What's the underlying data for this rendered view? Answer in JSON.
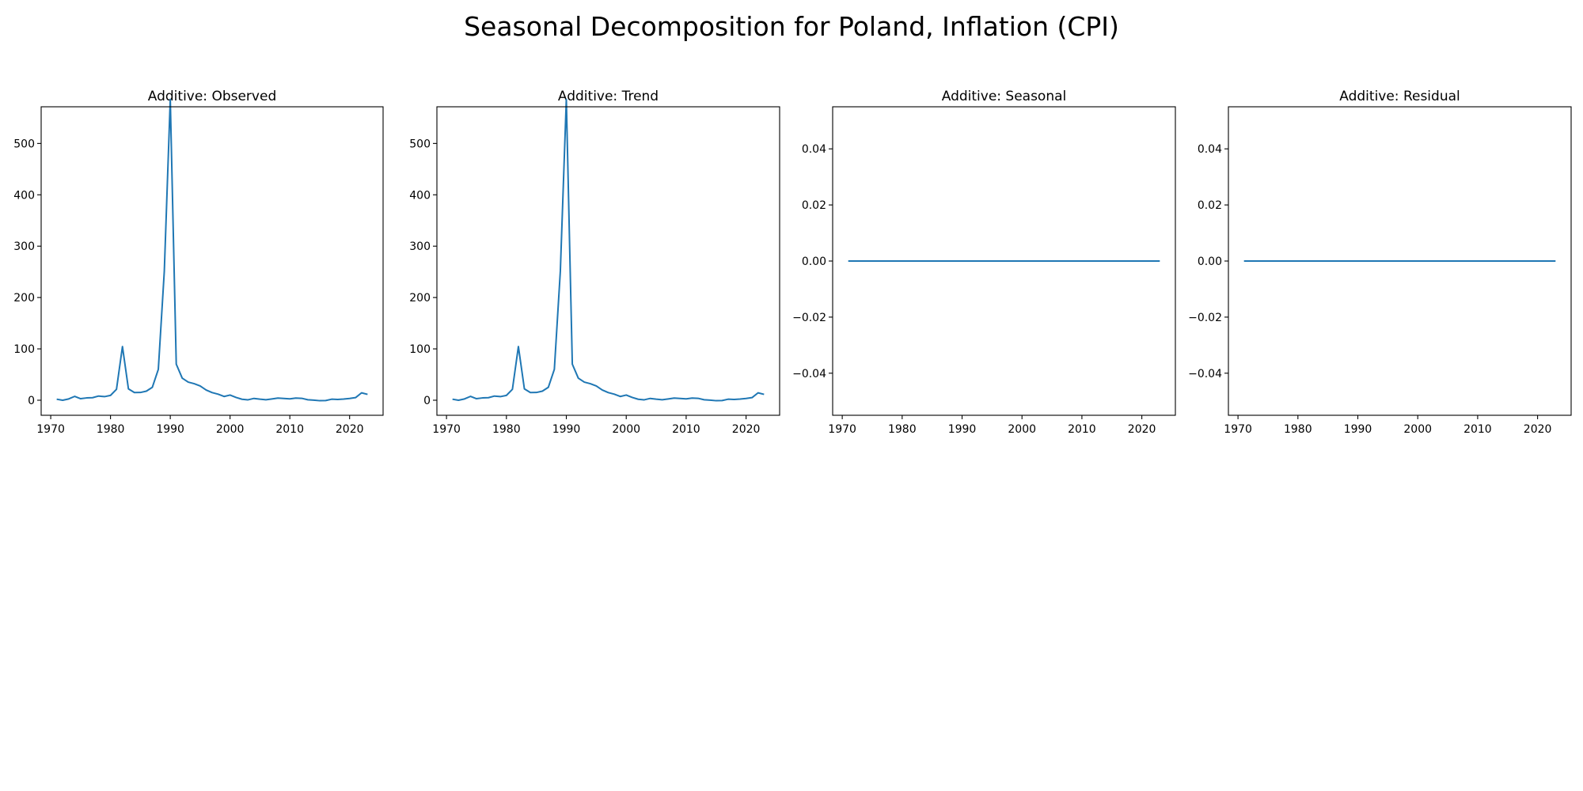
{
  "figure": {
    "title": "Seasonal Decomposition for Poland, Inflation (CPI)"
  },
  "chart_data": [
    {
      "type": "line",
      "title": "Additive: Observed",
      "xlabel": "",
      "ylabel": "",
      "x": [
        1971,
        1972,
        1973,
        1974,
        1975,
        1976,
        1977,
        1978,
        1979,
        1980,
        1981,
        1982,
        1983,
        1984,
        1985,
        1986,
        1987,
        1988,
        1989,
        1990,
        1991,
        1992,
        1993,
        1994,
        1995,
        1996,
        1997,
        1998,
        1999,
        2000,
        2001,
        2002,
        2003,
        2004,
        2005,
        2006,
        2007,
        2008,
        2009,
        2010,
        2011,
        2012,
        2013,
        2014,
        2015,
        2016,
        2017,
        2018,
        2019,
        2020,
        2021,
        2022,
        2023
      ],
      "values": [
        2.0,
        0.0,
        2.5,
        7.5,
        3.0,
        4.5,
        5.0,
        8.1,
        7.0,
        9.4,
        21.2,
        104.5,
        22.1,
        15.0,
        15.1,
        17.7,
        25.2,
        60.2,
        251.1,
        585.8,
        70.3,
        43.0,
        35.3,
        32.2,
        27.8,
        19.9,
        14.9,
        11.8,
        7.3,
        10.1,
        5.5,
        1.9,
        0.8,
        3.5,
        2.1,
        1.0,
        2.5,
        4.2,
        3.5,
        2.6,
        4.2,
        3.7,
        0.9,
        0.1,
        -0.9,
        -0.6,
        2.0,
        1.6,
        2.2,
        3.4,
        5.1,
        14.4,
        11.4
      ],
      "xticks": [
        "1970",
        "1980",
        "1990",
        "2000",
        "2010",
        "2020"
      ],
      "xtick_values": [
        1970,
        1980,
        1990,
        2000,
        2010,
        2020
      ],
      "yticks": [
        "0",
        "100",
        "200",
        "300",
        "400",
        "500"
      ],
      "ytick_values": [
        0,
        100,
        200,
        300,
        400,
        500
      ],
      "xlim": [
        1968.4,
        2025.6
      ],
      "ylim": [
        -29.3,
        571.4
      ],
      "grid": false,
      "color": "#1f77b4"
    },
    {
      "type": "line",
      "title": "Additive: Trend",
      "xlabel": "",
      "ylabel": "",
      "x": [
        1971,
        1972,
        1973,
        1974,
        1975,
        1976,
        1977,
        1978,
        1979,
        1980,
        1981,
        1982,
        1983,
        1984,
        1985,
        1986,
        1987,
        1988,
        1989,
        1990,
        1991,
        1992,
        1993,
        1994,
        1995,
        1996,
        1997,
        1998,
        1999,
        2000,
        2001,
        2002,
        2003,
        2004,
        2005,
        2006,
        2007,
        2008,
        2009,
        2010,
        2011,
        2012,
        2013,
        2014,
        2015,
        2016,
        2017,
        2018,
        2019,
        2020,
        2021,
        2022,
        2023
      ],
      "values": [
        2.0,
        0.0,
        2.5,
        7.5,
        3.0,
        4.5,
        5.0,
        8.1,
        7.0,
        9.4,
        21.2,
        104.5,
        22.1,
        15.0,
        15.1,
        17.7,
        25.2,
        60.2,
        251.1,
        585.8,
        70.3,
        43.0,
        35.3,
        32.2,
        27.8,
        19.9,
        14.9,
        11.8,
        7.3,
        10.1,
        5.5,
        1.9,
        0.8,
        3.5,
        2.1,
        1.0,
        2.5,
        4.2,
        3.5,
        2.6,
        4.2,
        3.7,
        0.9,
        0.1,
        -0.9,
        -0.6,
        2.0,
        1.6,
        2.2,
        3.4,
        5.1,
        14.4,
        11.4
      ],
      "xticks": [
        "1970",
        "1980",
        "1990",
        "2000",
        "2010",
        "2020"
      ],
      "xtick_values": [
        1970,
        1980,
        1990,
        2000,
        2010,
        2020
      ],
      "yticks": [
        "0",
        "100",
        "200",
        "300",
        "400",
        "500"
      ],
      "ytick_values": [
        0,
        100,
        200,
        300,
        400,
        500
      ],
      "xlim": [
        1968.4,
        2025.6
      ],
      "ylim": [
        -29.3,
        571.4
      ],
      "grid": false,
      "color": "#1f77b4"
    },
    {
      "type": "line",
      "title": "Additive: Seasonal",
      "xlabel": "",
      "ylabel": "",
      "x": [
        1971,
        2023
      ],
      "values": [
        0.0,
        0.0
      ],
      "xticks": [
        "1970",
        "1980",
        "1990",
        "2000",
        "2010",
        "2020"
      ],
      "xtick_values": [
        1970,
        1980,
        1990,
        2000,
        2010,
        2020
      ],
      "yticks": [
        "−0.04",
        "−0.02",
        "0.00",
        "0.02",
        "0.04"
      ],
      "ytick_values": [
        -0.04,
        -0.02,
        0.0,
        0.02,
        0.04
      ],
      "xlim": [
        1968.4,
        2025.6
      ],
      "ylim": [
        -0.055,
        0.055
      ],
      "grid": false,
      "color": "#1f77b4"
    },
    {
      "type": "line",
      "title": "Additive: Residual",
      "xlabel": "",
      "ylabel": "",
      "x": [
        1971,
        2023
      ],
      "values": [
        0.0,
        0.0
      ],
      "xticks": [
        "1970",
        "1980",
        "1990",
        "2000",
        "2010",
        "2020"
      ],
      "xtick_values": [
        1970,
        1980,
        1990,
        2000,
        2010,
        2020
      ],
      "yticks": [
        "−0.04",
        "−0.02",
        "0.00",
        "0.02",
        "0.04"
      ],
      "ytick_values": [
        -0.04,
        -0.02,
        0.0,
        0.02,
        0.04
      ],
      "xlim": [
        1968.4,
        2025.6
      ],
      "ylim": [
        -0.055,
        0.055
      ],
      "grid": false,
      "color": "#1f77b4"
    }
  ]
}
